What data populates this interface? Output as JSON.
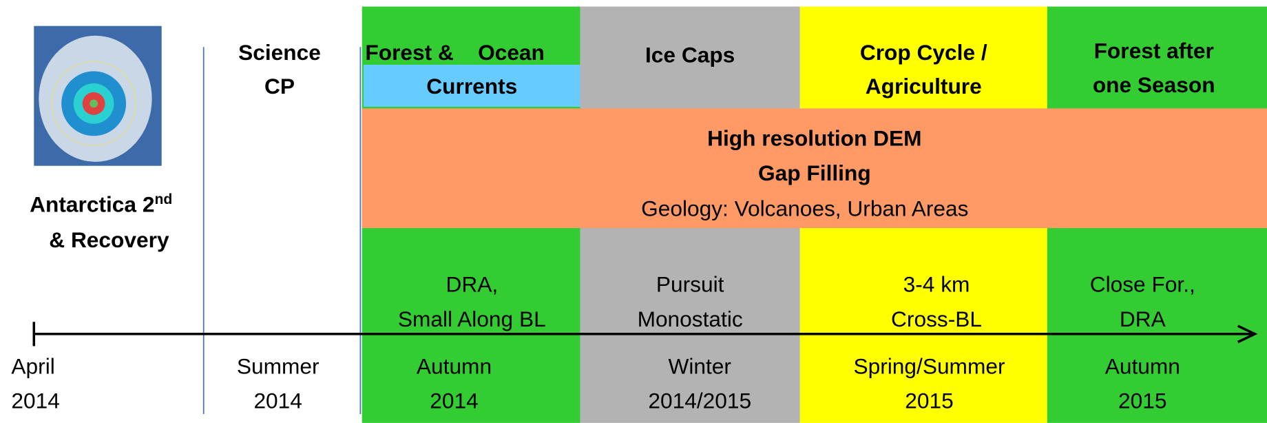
{
  "mission": {
    "label": "Antarctica 2",
    "label_sup": "nd",
    "label_line2": "& Recovery"
  },
  "phases": [
    {
      "title": [
        "Science",
        "CP"
      ],
      "note": [],
      "season": [
        "Summer",
        "2014"
      ]
    },
    {
      "title": [
        "Forest &    Ocean",
        "Currents"
      ],
      "note": [
        "DRA,",
        "Small Along BL"
      ],
      "season": [
        "Autumn",
        "2014"
      ]
    },
    {
      "title": [
        "Ice Caps"
      ],
      "note": [
        "Pursuit",
        "Monostatic"
      ],
      "season": [
        "Winter",
        "2014/2015"
      ]
    },
    {
      "title": [
        "Crop Cycle /",
        "Agriculture"
      ],
      "note": [
        "3-4 km",
        "Cross-BL"
      ],
      "season": [
        "Spring/Summer",
        "2015"
      ]
    },
    {
      "title": [
        "Forest after",
        "one Season"
      ],
      "note": [
        "Close For.,",
        "DRA"
      ],
      "season": [
        "Autumn",
        "2015"
      ]
    }
  ],
  "band": [
    "High resolution DEM",
    "Gap Filling",
    "Geology: Volcanoes, Urban Areas"
  ],
  "start": [
    "April",
    "2014"
  ]
}
